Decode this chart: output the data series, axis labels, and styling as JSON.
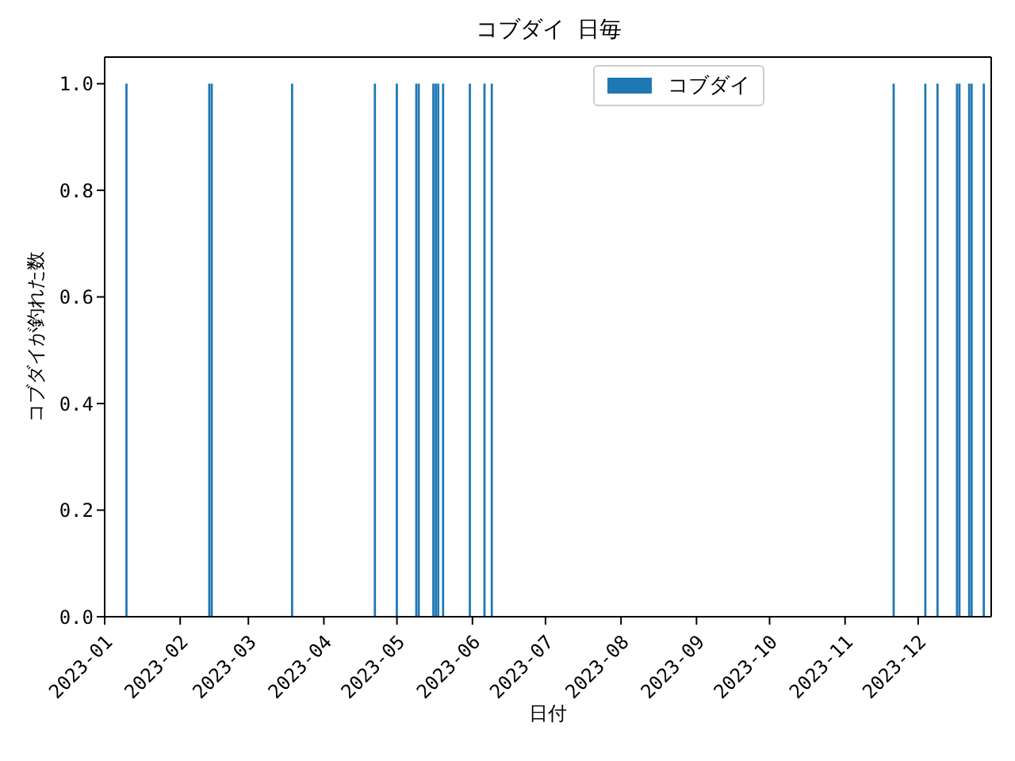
{
  "chart_data": {
    "type": "bar",
    "title": "コブダイ 日毎",
    "xlabel": "日付",
    "ylabel": "コブダイが釣れた数",
    "x": [
      "2023-01-10",
      "2023-02-13",
      "2023-02-14",
      "2023-03-19",
      "2023-04-22",
      "2023-05-01",
      "2023-05-09",
      "2023-05-10",
      "2023-05-16",
      "2023-05-17",
      "2023-05-18",
      "2023-05-20",
      "2023-05-31",
      "2023-06-06",
      "2023-06-09",
      "2023-11-21",
      "2023-12-04",
      "2023-12-09",
      "2023-12-17",
      "2023-12-18",
      "2023-12-22",
      "2023-12-23",
      "2023-12-28"
    ],
    "series": [
      {
        "name": "コブダイ",
        "color": "#1f77b4",
        "values": [
          1,
          1,
          1,
          1,
          1,
          1,
          1,
          1,
          1,
          1,
          1,
          1,
          1,
          1,
          1,
          1,
          1,
          1,
          1,
          1,
          1,
          1,
          1
        ]
      }
    ],
    "xlim": [
      "2023-01-01",
      "2023-12-31"
    ],
    "xticks": [
      "2023-01",
      "2023-02",
      "2023-03",
      "2023-04",
      "2023-05",
      "2023-06",
      "2023-07",
      "2023-08",
      "2023-09",
      "2023-10",
      "2023-11",
      "2023-12"
    ],
    "ylim": [
      0,
      1.05
    ],
    "yticks": [
      {
        "value": 0,
        "label": "0.0"
      },
      {
        "value": 0.2,
        "label": "0.2"
      },
      {
        "value": 0.4,
        "label": "0.4"
      },
      {
        "value": 0.6,
        "label": "0.6"
      },
      {
        "value": 0.8,
        "label": "0.8"
      },
      {
        "value": 1,
        "label": "1.0"
      }
    ],
    "legend": "top"
  }
}
